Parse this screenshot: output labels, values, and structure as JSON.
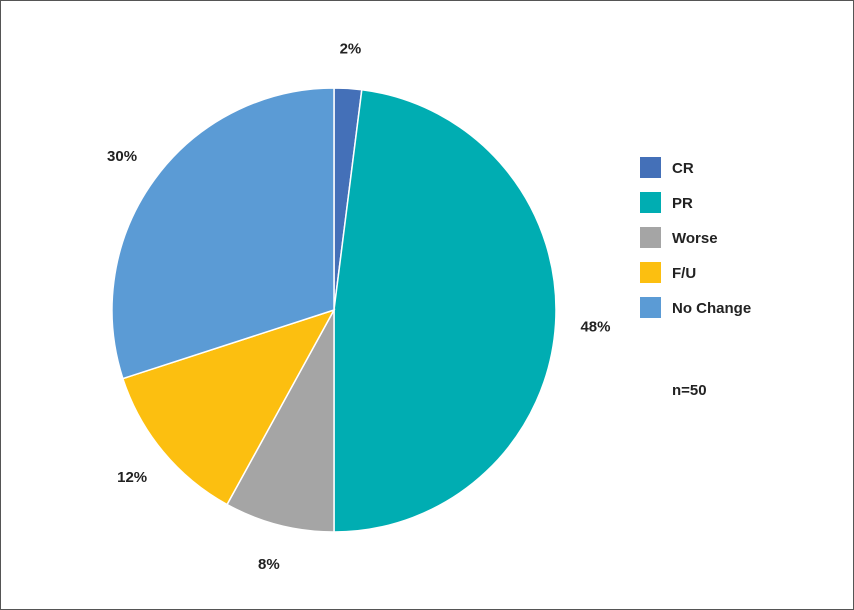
{
  "chart_data": {
    "type": "pie",
    "categories": [
      "CR",
      "PR",
      "Worse",
      "F/U",
      "No Change"
    ],
    "values": [
      2,
      48,
      8,
      12,
      30
    ],
    "labels": [
      "2%",
      "48%",
      "8%",
      "12%",
      "30%"
    ],
    "colors": [
      "#4470B8",
      "#00ADB2",
      "#A5A5A5",
      "#FCBF10",
      "#5B9BD5"
    ],
    "legend": "right",
    "annotation": "n=50"
  }
}
